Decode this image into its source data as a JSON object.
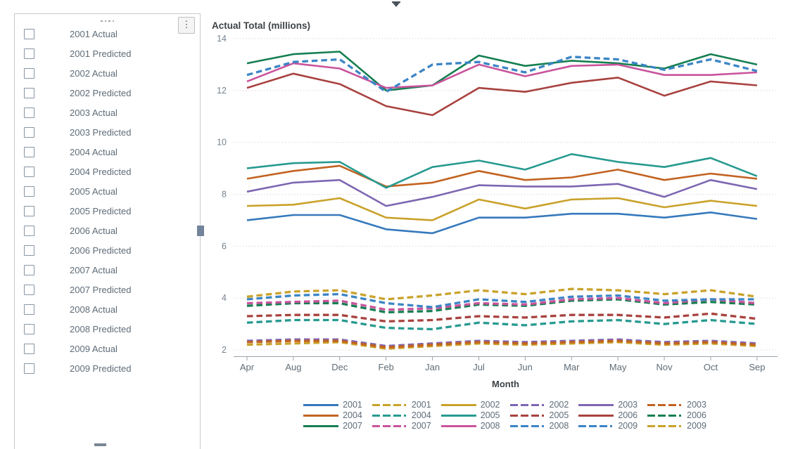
{
  "panel": {
    "items": [
      {
        "label": "2001 Actual",
        "checked": false
      },
      {
        "label": "2001 Predicted",
        "checked": false
      },
      {
        "label": "2002 Actual",
        "checked": false
      },
      {
        "label": "2002 Predicted",
        "checked": false
      },
      {
        "label": "2003 Actual",
        "checked": false
      },
      {
        "label": "2003 Predicted",
        "checked": false
      },
      {
        "label": "2004 Actual",
        "checked": false
      },
      {
        "label": "2004 Predicted",
        "checked": false
      },
      {
        "label": "2005 Actual",
        "checked": false
      },
      {
        "label": "2005 Predicted",
        "checked": false
      },
      {
        "label": "2006 Actual",
        "checked": false
      },
      {
        "label": "2006 Predicted",
        "checked": false
      },
      {
        "label": "2007 Actual",
        "checked": false
      },
      {
        "label": "2007 Predicted",
        "checked": false
      },
      {
        "label": "2008 Actual",
        "checked": false
      },
      {
        "label": "2008 Predicted",
        "checked": false
      },
      {
        "label": "2009 Actual",
        "checked": false
      },
      {
        "label": "2009 Predicted",
        "checked": false
      }
    ]
  },
  "icons": {
    "menu": "⋮",
    "collapse": "▼"
  },
  "colors": {
    "grid": "#D7D7D7",
    "axis": "#9AA3AC",
    "tick_text": "#75828F",
    "label_text": "#5E6C78"
  },
  "chart_data": {
    "type": "line",
    "title": "Actual Total (millions)",
    "xlabel": "Month",
    "ylabel": "",
    "ylim": [
      2,
      14
    ],
    "yticks": [
      14,
      12,
      10,
      8,
      6,
      4,
      2
    ],
    "grid": "horizontal-dotted",
    "legend_position": "bottom",
    "categories": [
      "Apr",
      "Aug",
      "Dec",
      "Feb",
      "Jan",
      "Jul",
      "Jun",
      "Mar",
      "May",
      "Nov",
      "Oct",
      "Sep"
    ],
    "series": [
      {
        "name": "2001",
        "group": "Actual",
        "color": "#3679BD",
        "dash": false,
        "values": [
          7.0,
          7.2,
          7.2,
          6.65,
          6.5,
          7.1,
          7.1,
          7.25,
          7.25,
          7.1,
          7.3,
          7.05
        ]
      },
      {
        "name": "2002",
        "group": "Actual",
        "color": "#C9A22A",
        "dash": false,
        "values": [
          7.55,
          7.6,
          7.85,
          7.1,
          7.0,
          7.8,
          7.45,
          7.8,
          7.85,
          7.5,
          7.75,
          7.55
        ]
      },
      {
        "name": "2003",
        "group": "Actual",
        "color": "#7D66B2",
        "dash": false,
        "values": [
          8.1,
          8.45,
          8.55,
          7.55,
          7.9,
          8.35,
          8.3,
          8.3,
          8.4,
          7.9,
          8.55,
          8.2
        ]
      },
      {
        "name": "2004",
        "group": "Actual",
        "color": "#C26321",
        "dash": false,
        "values": [
          8.6,
          8.9,
          9.1,
          8.3,
          8.45,
          8.9,
          8.55,
          8.65,
          8.95,
          8.55,
          8.8,
          8.6
        ]
      },
      {
        "name": "2005",
        "group": "Actual",
        "color": "#279A90",
        "dash": false,
        "values": [
          9.0,
          9.2,
          9.25,
          8.25,
          9.05,
          9.3,
          8.95,
          9.55,
          9.25,
          9.05,
          9.4,
          8.7
        ]
      },
      {
        "name": "2006",
        "group": "Actual",
        "color": "#A8423F",
        "dash": false,
        "values": [
          12.1,
          12.65,
          12.25,
          11.4,
          11.05,
          12.1,
          11.95,
          12.3,
          12.5,
          11.8,
          12.35,
          12.2
        ]
      },
      {
        "name": "2007",
        "group": "Actual",
        "color": "#157F51",
        "dash": false,
        "values": [
          13.05,
          13.4,
          13.5,
          12.0,
          12.2,
          13.35,
          12.95,
          13.15,
          13.05,
          12.85,
          13.4,
          13.0
        ]
      },
      {
        "name": "2008",
        "group": "Actual",
        "color": "#C9549C",
        "dash": false,
        "values": [
          12.35,
          13.05,
          12.85,
          12.1,
          12.2,
          13.0,
          12.55,
          12.95,
          13.0,
          12.6,
          12.6,
          12.7
        ]
      },
      {
        "name": "2009",
        "group": "Actual",
        "color": "#3B85C6",
        "dash": true,
        "values": [
          12.6,
          13.1,
          13.2,
          11.95,
          13.0,
          13.1,
          12.7,
          13.3,
          13.2,
          12.8,
          13.2,
          12.75
        ]
      },
      {
        "name": "2001",
        "group": "Predicted",
        "color": "#C9A22A",
        "dash": true,
        "values": [
          2.2,
          2.25,
          2.3,
          2.05,
          2.15,
          2.25,
          2.2,
          2.25,
          2.3,
          2.2,
          2.25,
          2.15
        ]
      },
      {
        "name": "2002",
        "group": "Predicted",
        "color": "#7D66B2",
        "dash": true,
        "values": [
          2.35,
          2.4,
          2.4,
          2.15,
          2.25,
          2.35,
          2.3,
          2.35,
          2.4,
          2.3,
          2.35,
          2.25
        ]
      },
      {
        "name": "2003",
        "group": "Predicted",
        "color": "#C26321",
        "dash": true,
        "values": [
          2.3,
          2.35,
          2.35,
          2.1,
          2.2,
          2.3,
          2.25,
          2.3,
          2.35,
          2.25,
          2.3,
          2.2
        ]
      },
      {
        "name": "2004",
        "group": "Predicted",
        "color": "#279A90",
        "dash": true,
        "values": [
          3.05,
          3.15,
          3.15,
          2.85,
          2.8,
          3.05,
          2.95,
          3.1,
          3.15,
          3.0,
          3.15,
          3.0
        ]
      },
      {
        "name": "2005",
        "group": "Predicted",
        "color": "#A8423F",
        "dash": true,
        "values": [
          3.3,
          3.35,
          3.35,
          3.1,
          3.15,
          3.3,
          3.25,
          3.35,
          3.35,
          3.25,
          3.4,
          3.2
        ]
      },
      {
        "name": "2006",
        "group": "Predicted",
        "color": "#157F51",
        "dash": true,
        "values": [
          3.7,
          3.8,
          3.8,
          3.45,
          3.5,
          3.75,
          3.7,
          3.9,
          3.95,
          3.75,
          3.85,
          3.75
        ]
      },
      {
        "name": "2007",
        "group": "Predicted",
        "color": "#C9549C",
        "dash": true,
        "values": [
          3.8,
          3.85,
          3.9,
          3.55,
          3.6,
          3.8,
          3.75,
          3.95,
          4.0,
          3.8,
          3.95,
          3.8
        ]
      },
      {
        "name": "2008",
        "group": "Predicted",
        "color": "#3B85C6",
        "dash": true,
        "values": [
          3.95,
          4.1,
          4.15,
          3.8,
          3.65,
          3.95,
          3.85,
          4.05,
          4.1,
          3.9,
          3.95,
          3.95
        ]
      },
      {
        "name": "2009",
        "group": "Predicted",
        "color": "#C9A22A",
        "dash": true,
        "values": [
          4.05,
          4.25,
          4.3,
          3.95,
          4.1,
          4.3,
          4.15,
          4.35,
          4.3,
          4.15,
          4.3,
          4.05
        ]
      }
    ],
    "legend": [
      {
        "label": "2001",
        "color": "#3679BD",
        "dash": false
      },
      {
        "label": "2001",
        "color": "#C9A22A",
        "dash": true
      },
      {
        "label": "2002",
        "color": "#C9A22A",
        "dash": false
      },
      {
        "label": "2002",
        "color": "#7D66B2",
        "dash": true
      },
      {
        "label": "2003",
        "color": "#7D66B2",
        "dash": false
      },
      {
        "label": "2003",
        "color": "#C26321",
        "dash": true
      },
      {
        "label": "2004",
        "color": "#C26321",
        "dash": false
      },
      {
        "label": "2004",
        "color": "#279A90",
        "dash": true
      },
      {
        "label": "2005",
        "color": "#279A90",
        "dash": false
      },
      {
        "label": "2005",
        "color": "#A8423F",
        "dash": true
      },
      {
        "label": "2006",
        "color": "#A8423F",
        "dash": false
      },
      {
        "label": "2006",
        "color": "#157F51",
        "dash": true
      },
      {
        "label": "2007",
        "color": "#157F51",
        "dash": false
      },
      {
        "label": "2007",
        "color": "#C9549C",
        "dash": true
      },
      {
        "label": "2008",
        "color": "#C9549C",
        "dash": false
      },
      {
        "label": "2008",
        "color": "#3B85C6",
        "dash": true
      },
      {
        "label": "2009",
        "color": "#3B85C6",
        "dash": true
      },
      {
        "label": "2009",
        "color": "#C9A22A",
        "dash": true
      }
    ]
  }
}
